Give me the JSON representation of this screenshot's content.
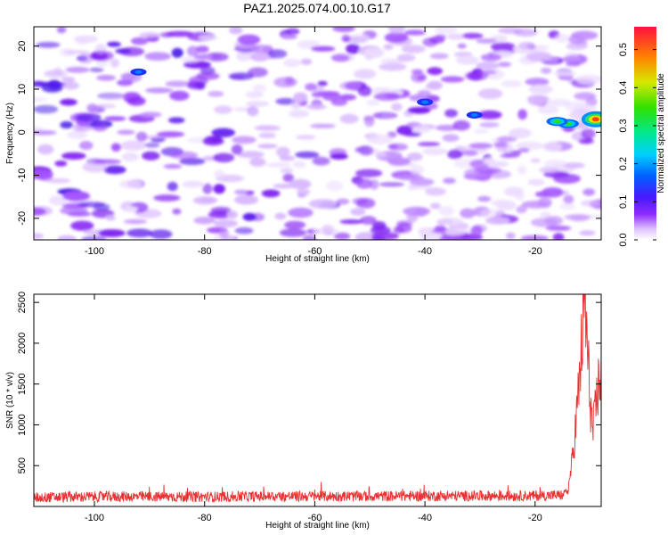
{
  "title": "PAZ1.2025.074.00.10.G17",
  "chart_data": [
    {
      "type": "heatmap",
      "title": "PAZ1.2025.074.00.10.G17",
      "xlabel": "Height of straight line (km)",
      "ylabel": "Frequency (Hz)",
      "xlim": [
        -111,
        -8
      ],
      "ylim": [
        -25,
        24.5
      ],
      "xticks": [
        -100,
        -80,
        -60,
        -40,
        -20
      ],
      "xtick_labels": [
        "-100",
        "-80",
        "-60",
        "-40",
        "-20"
      ],
      "yticks": [
        -20,
        -10,
        0,
        10,
        20
      ],
      "ytick_labels": [
        "-20",
        "-10",
        "0",
        "10",
        "20"
      ],
      "colorbar": {
        "label": "Normalized spectral amplitude",
        "range": [
          0,
          0.56
        ],
        "ticks": [
          0.0,
          0.1,
          0.2,
          0.3,
          0.4,
          0.5
        ],
        "tick_labels": [
          "0.0",
          "0.1",
          "0.2",
          "0.3",
          "0.4",
          "0.5"
        ]
      },
      "grid": false,
      "peaks": [
        {
          "x": -9,
          "y": 3,
          "value": 0.5
        },
        {
          "x": -14,
          "y": 2,
          "value": 0.3
        },
        {
          "x": -16,
          "y": 2.5,
          "value": 0.3
        },
        {
          "x": -31,
          "y": 4,
          "value": 0.12
        },
        {
          "x": -40,
          "y": 7,
          "value": 0.1
        },
        {
          "x": -92,
          "y": 14,
          "value": 0.1
        }
      ]
    },
    {
      "type": "line",
      "xlabel": "Height of straight line (km)",
      "ylabel": "SNR (10 * v/v)",
      "xlim": [
        -111,
        -8
      ],
      "ylim": [
        0,
        2600
      ],
      "xticks": [
        -100,
        -80,
        -60,
        -40,
        -20
      ],
      "xtick_labels": [
        "-100",
        "-80",
        "-60",
        "-40",
        "-20"
      ],
      "yticks": [
        500,
        1000,
        1500,
        2000,
        2500
      ],
      "ytick_labels": [
        "500",
        "1000",
        "1500",
        "2000",
        "2500"
      ],
      "grid": false,
      "line_color": "#e83030",
      "profile": {
        "x": [
          -111,
          -100,
          -90,
          -80,
          -70,
          -60,
          -50,
          -40,
          -30,
          -20,
          -15,
          -14,
          -13,
          -12,
          -11.5,
          -11,
          -10.5,
          -10,
          -9.5,
          -9,
          -8.5,
          -8
        ],
        "y": [
          110,
          120,
          120,
          118,
          122,
          125,
          125,
          128,
          130,
          130,
          140,
          200,
          700,
          1500,
          2000,
          2550,
          1900,
          1300,
          900,
          1200,
          1500,
          1600
        ]
      }
    }
  ]
}
